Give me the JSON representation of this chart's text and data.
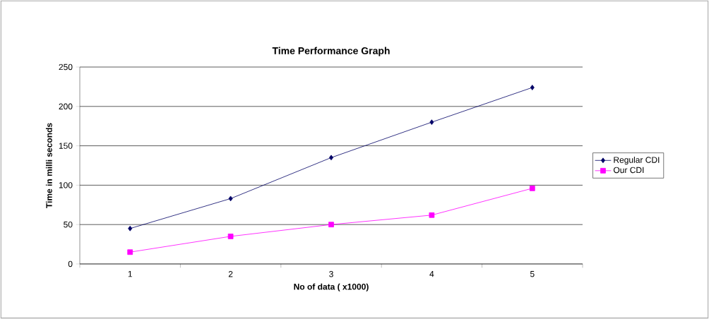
{
  "chart_data": {
    "type": "line",
    "title": "Time Performance Graph",
    "xlabel": "No of data  ( x1000)",
    "ylabel": "Time in milli seconds",
    "categories": [
      "1",
      "2",
      "3",
      "4",
      "5"
    ],
    "series": [
      {
        "name": "Regular CDI",
        "color": "#000066",
        "marker": "diamond",
        "values": [
          45,
          83,
          135,
          180,
          224
        ]
      },
      {
        "name": "Our CDI",
        "color": "#ff00ff",
        "marker": "square",
        "values": [
          15,
          35,
          50,
          62,
          96
        ]
      }
    ],
    "ylim": [
      0,
      250
    ],
    "yticks": [
      0,
      50,
      100,
      150,
      200,
      250
    ],
    "grid": "y",
    "legend": "right",
    "line_style": "solid"
  }
}
